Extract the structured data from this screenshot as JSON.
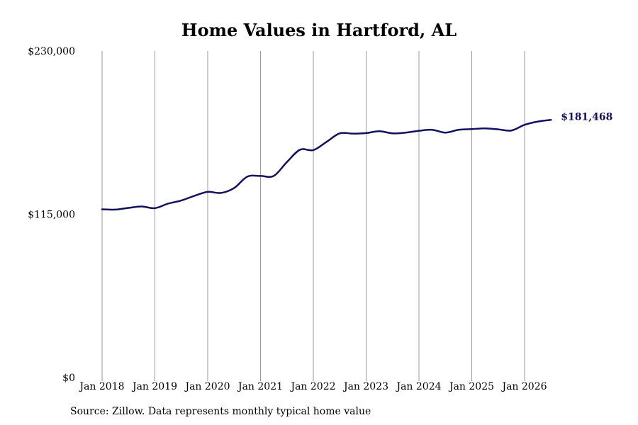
{
  "chart_data": {
    "type": "line",
    "title": "Home Values in Hartford, AL",
    "xlabel": "",
    "ylabel": "",
    "ylim": [
      0,
      230000
    ],
    "y_ticks": [
      {
        "value": 0,
        "label": "$0"
      },
      {
        "value": 115000,
        "label": "$115,000"
      },
      {
        "value": 230000,
        "label": "$230,000"
      }
    ],
    "x_ticks": [
      "Jan 2018",
      "Jan 2019",
      "Jan 2020",
      "Jan 2021",
      "Jan 2022",
      "Jan 2023",
      "Jan 2024",
      "Jan 2025",
      "Jan 2026"
    ],
    "grid": "vertical lines at each January",
    "line_color": "#13105e",
    "end_label": "$181,468",
    "series": [
      {
        "x": [
          "2018-01",
          "2018-04",
          "2018-07",
          "2018-10",
          "2019-01",
          "2019-04",
          "2019-07",
          "2019-10",
          "2020-01",
          "2020-04",
          "2020-07",
          "2020-10",
          "2021-01",
          "2021-04",
          "2021-07",
          "2021-10",
          "2022-01",
          "2022-04",
          "2022-07",
          "2022-10",
          "2023-01",
          "2023-04",
          "2023-07",
          "2023-10",
          "2024-01",
          "2024-04",
          "2024-07",
          "2024-10",
          "2025-01",
          "2025-04",
          "2025-07",
          "2025-10",
          "2026-01",
          "2026-04",
          "2026-07"
        ],
        "values": [
          118500,
          118300,
          119500,
          120500,
          119300,
          122500,
          124700,
          128000,
          130800,
          130000,
          133500,
          141500,
          142000,
          142000,
          151800,
          160500,
          160200,
          166000,
          172000,
          171800,
          172200,
          173500,
          172000,
          172500,
          173800,
          174500,
          172500,
          174500,
          175000,
          175500,
          174800,
          174000,
          178000,
          180300,
          181468
        ]
      }
    ]
  },
  "footer": {
    "source": "Source: Zillow. Data represents monthly typical home value"
  },
  "colors": {
    "line": "#13105e",
    "grid": "#999999",
    "text": "#000000"
  }
}
